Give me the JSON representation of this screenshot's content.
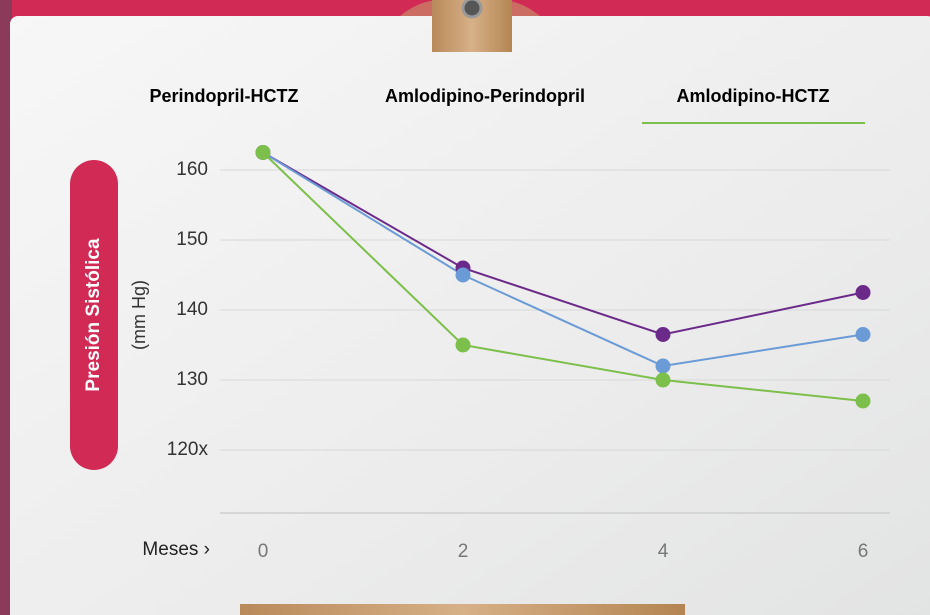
{
  "chart_data": {
    "type": "line",
    "ylabel": "Presión Sistólica",
    "ylabel_unit": "(mm Hg)",
    "xlabel": "Meses ›",
    "x": [
      0,
      2,
      4,
      6
    ],
    "xlim": [
      -0.43,
      6.27
    ],
    "xticks": [
      0,
      2,
      4,
      6
    ],
    "ylim": [
      111,
      167
    ],
    "yticks": [
      {
        "value": 120,
        "label": "120x"
      },
      130,
      140,
      150,
      160
    ],
    "grid": true,
    "series": [
      {
        "name": "Perindopril-HCTZ",
        "color": "#6b2a8a",
        "values": [
          162.5,
          146,
          136.5,
          142.5
        ]
      },
      {
        "name": "Amlodipino-Perindopril",
        "color": "#6b9bd6",
        "values": [
          162.5,
          145,
          132,
          136.5
        ]
      },
      {
        "name": "Amlodipino-HCTZ",
        "color": "#7cbf4a",
        "values": [
          162.5,
          135,
          130,
          127
        ]
      }
    ]
  }
}
